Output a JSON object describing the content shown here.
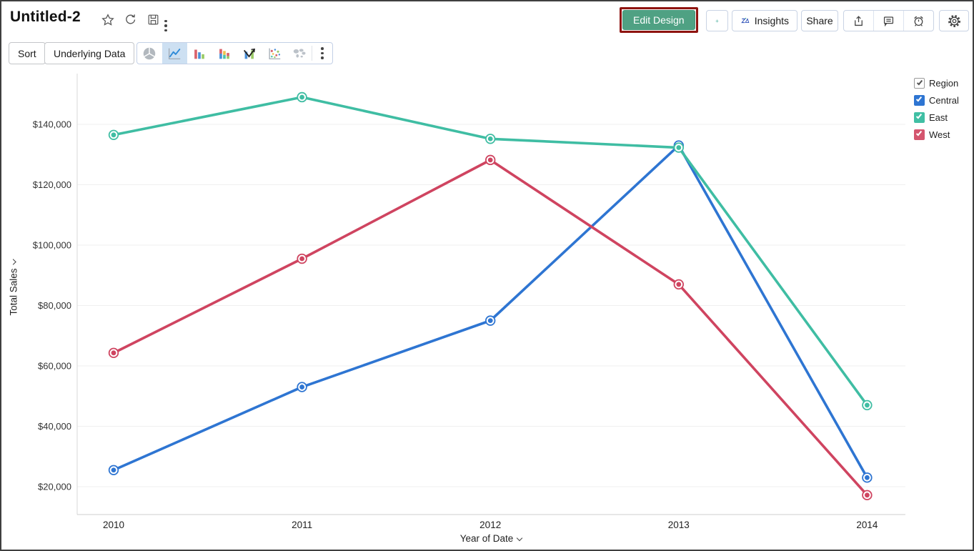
{
  "header": {
    "title": "Untitled-2",
    "icons": [
      "star-icon",
      "refresh-icon",
      "save-icon",
      "more-vertical-icon"
    ],
    "actions": {
      "edit_design": "Edit Design",
      "add": "+",
      "insights": "Insights",
      "share": "Share",
      "icon_buttons": [
        "export-icon",
        "comment-icon",
        "alarm-icon",
        "settings-icon"
      ]
    }
  },
  "toolbar": {
    "sort": "Sort",
    "underlying_data": "Underlying Data",
    "chart_types": [
      "pie",
      "line",
      "bar",
      "stacked-bar",
      "combo",
      "bubble",
      "map"
    ],
    "selected_chart_type": "line"
  },
  "legend": {
    "title": "Region",
    "items": [
      {
        "label": "Central",
        "color": "#2e75d2",
        "checked": true
      },
      {
        "label": "East",
        "color": "#40bfa4",
        "checked": true
      },
      {
        "label": "West",
        "color": "#d4556e",
        "checked": true
      }
    ]
  },
  "chart_data": {
    "type": "line",
    "x": [
      "2010",
      "2011",
      "2012",
      "2013",
      "2014"
    ],
    "series": [
      {
        "name": "Central",
        "color": "#2e75d2",
        "values": [
          25500,
          53000,
          75000,
          133000,
          23000
        ]
      },
      {
        "name": "East",
        "color": "#3fbda3",
        "values": [
          136500,
          149000,
          135200,
          132300,
          47000
        ]
      },
      {
        "name": "West",
        "color": "#cf4460",
        "values": [
          64300,
          95500,
          128200,
          87000,
          17200
        ]
      }
    ],
    "xlabel": "Year of Date",
    "ylabel": "Total Sales",
    "y_ticks": [
      20000,
      40000,
      60000,
      80000,
      100000,
      120000,
      140000
    ],
    "y_tick_prefix": "$",
    "ylim": [
      10000,
      155000
    ],
    "grid": true,
    "legend_position": "right"
  },
  "colors": {
    "edit_design_bg": "#4fa183",
    "annotation_border": "#8e1410",
    "accent_teal": "#3aa795",
    "selected_icon_bg": "#cde0f2"
  }
}
